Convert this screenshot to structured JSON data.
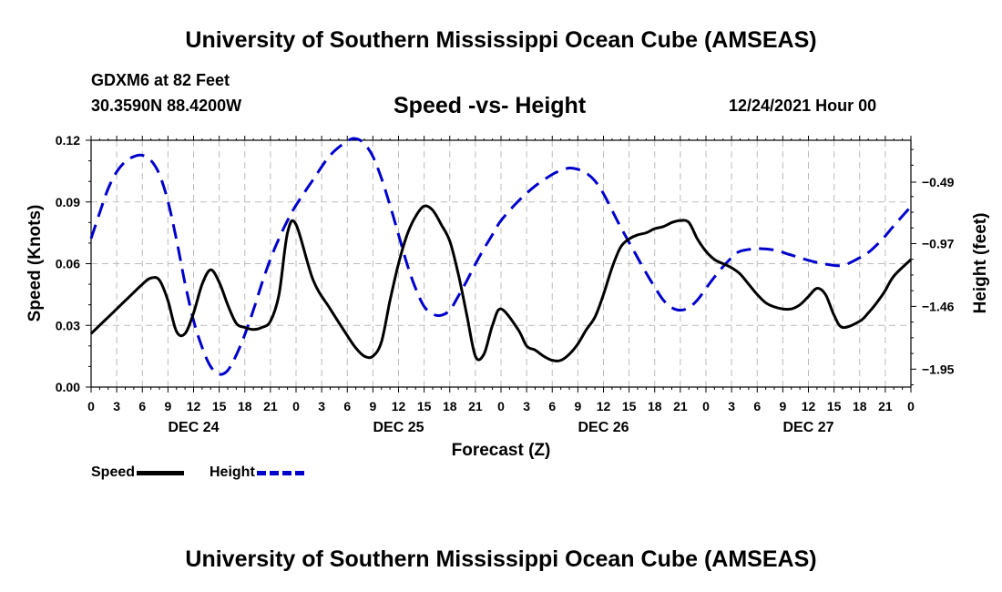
{
  "header": {
    "title": "University of Southern Mississippi Ocean Cube (AMSEAS)",
    "station": "GDXM6 at 82 Feet",
    "coords": "30.3590N  88.4200W",
    "subtitle": "Speed -vs- Height",
    "date": "12/24/2021 Hour 00"
  },
  "footer": {
    "title": "University of Southern Mississippi Ocean Cube (AMSEAS)"
  },
  "chart_data": {
    "type": "line",
    "title": "Speed -vs- Height",
    "xlabel": "Forecast (Z)",
    "ylabel": "Speed (Knots)",
    "ylabel_right": "Height (feet)",
    "xlim": [
      0,
      96
    ],
    "ylim": [
      0,
      0.12
    ],
    "ylim_right": [
      -2.09,
      -0.163
    ],
    "grid": true,
    "x_ticks": [
      0,
      3,
      6,
      9,
      12,
      15,
      18,
      21,
      24,
      27,
      30,
      33,
      36,
      39,
      42,
      45,
      48,
      51,
      54,
      57,
      60,
      63,
      66,
      69,
      72,
      75,
      78,
      81,
      84,
      87,
      90,
      93,
      96
    ],
    "x_tick_labels": [
      "0",
      "3",
      "6",
      "9",
      "12",
      "15",
      "18",
      "21",
      "0",
      "3",
      "6",
      "9",
      "12",
      "15",
      "18",
      "21",
      "0",
      "3",
      "6",
      "9",
      "12",
      "15",
      "18",
      "21",
      "0",
      "3",
      "6",
      "9",
      "12",
      "15",
      "18",
      "21",
      "0"
    ],
    "day_labels": [
      {
        "x": 12,
        "label": "DEC 24"
      },
      {
        "x": 36,
        "label": "DEC 25"
      },
      {
        "x": 60,
        "label": "DEC 26"
      },
      {
        "x": 84,
        "label": "DEC 27"
      }
    ],
    "y_ticks": [
      0,
      0.03,
      0.06,
      0.09,
      0.12
    ],
    "y_tick_labels": [
      "0.00",
      "0.03",
      "0.06",
      "0.09",
      "0.12"
    ],
    "y_right_ticks": [
      -1.95,
      -1.46,
      -0.97,
      -0.49
    ],
    "y_right_tick_labels": [
      "−1.95",
      "−1.46",
      "−0.97",
      "−0.49"
    ],
    "legend": [
      {
        "name": "Speed",
        "color": "#000000",
        "dash": "solid"
      },
      {
        "name": "Height",
        "color": "#0000cc",
        "dash": "dashed"
      }
    ],
    "series": [
      {
        "name": "Speed",
        "axis": "left",
        "color": "#000000",
        "x": [
          0,
          2,
          4,
          6,
          7,
          8,
          9,
          10,
          11,
          12,
          13,
          14,
          15,
          16,
          17,
          18,
          19,
          20,
          21,
          22,
          23,
          24,
          26,
          28,
          30,
          31,
          32,
          33,
          34,
          35,
          36,
          37,
          38,
          39,
          40,
          41,
          42,
          43,
          44,
          45,
          46,
          47,
          48,
          50,
          51,
          52,
          53,
          54,
          55,
          56,
          57,
          58,
          59,
          60,
          61,
          62,
          63,
          64,
          65,
          66,
          67,
          68,
          69,
          70,
          71,
          72,
          73,
          74,
          75,
          76,
          77,
          78,
          79,
          80,
          81,
          82,
          83,
          84,
          85,
          86,
          87,
          88,
          90,
          91,
          92,
          93,
          94,
          96
        ],
        "values": [
          0.026,
          0.034,
          0.042,
          0.05,
          0.053,
          0.052,
          0.042,
          0.027,
          0.026,
          0.036,
          0.05,
          0.057,
          0.051,
          0.04,
          0.031,
          0.029,
          0.028,
          0.029,
          0.032,
          0.045,
          0.075,
          0.079,
          0.052,
          0.038,
          0.025,
          0.019,
          0.015,
          0.015,
          0.022,
          0.042,
          0.06,
          0.074,
          0.083,
          0.088,
          0.086,
          0.079,
          0.071,
          0.055,
          0.035,
          0.015,
          0.016,
          0.03,
          0.038,
          0.028,
          0.02,
          0.018,
          0.015,
          0.013,
          0.013,
          0.016,
          0.021,
          0.028,
          0.034,
          0.045,
          0.058,
          0.068,
          0.072,
          0.074,
          0.075,
          0.077,
          0.078,
          0.08,
          0.081,
          0.08,
          0.072,
          0.066,
          0.062,
          0.06,
          0.058,
          0.055,
          0.05,
          0.045,
          0.041,
          0.039,
          0.038,
          0.038,
          0.04,
          0.044,
          0.048,
          0.045,
          0.035,
          0.029,
          0.032,
          0.036,
          0.041,
          0.047,
          0.054,
          0.062
        ]
      },
      {
        "name": "Height",
        "axis": "right",
        "color": "#0000cc",
        "x": [
          0,
          1,
          2,
          3,
          4,
          5,
          6,
          7,
          8,
          9,
          10,
          11,
          12,
          13,
          14,
          15,
          16,
          17,
          18,
          19,
          20,
          21,
          22,
          23,
          24,
          26,
          28,
          30,
          31,
          32,
          33,
          34,
          35,
          36,
          37,
          38,
          39,
          40,
          41,
          42,
          43,
          44,
          45,
          46,
          47,
          48,
          50,
          52,
          54,
          55,
          56,
          57,
          58,
          59,
          60,
          61,
          62,
          63,
          64,
          65,
          66,
          67,
          68,
          69,
          70,
          71,
          72,
          73,
          74,
          75,
          76,
          78,
          80,
          82,
          84,
          86,
          88,
          90,
          91,
          92,
          93,
          94,
          96
        ],
        "values": [
          -0.93,
          -0.73,
          -0.54,
          -0.41,
          -0.33,
          -0.29,
          -0.28,
          -0.32,
          -0.43,
          -0.64,
          -0.94,
          -1.28,
          -1.57,
          -1.78,
          -1.93,
          -1.99,
          -1.96,
          -1.84,
          -1.68,
          -1.49,
          -1.28,
          -1.09,
          -0.93,
          -0.79,
          -0.67,
          -0.47,
          -0.28,
          -0.17,
          -0.15,
          -0.19,
          -0.29,
          -0.46,
          -0.67,
          -0.9,
          -1.13,
          -1.32,
          -1.46,
          -1.52,
          -1.53,
          -1.49,
          -1.38,
          -1.26,
          -1.13,
          -1.01,
          -0.9,
          -0.79,
          -0.64,
          -0.52,
          -0.43,
          -0.4,
          -0.38,
          -0.39,
          -0.42,
          -0.48,
          -0.58,
          -0.71,
          -0.84,
          -0.96,
          -1.08,
          -1.2,
          -1.31,
          -1.41,
          -1.47,
          -1.49,
          -1.47,
          -1.41,
          -1.32,
          -1.23,
          -1.15,
          -1.08,
          -1.03,
          -1.01,
          -1.02,
          -1.06,
          -1.1,
          -1.13,
          -1.14,
          -1.08,
          -1.04,
          -0.98,
          -0.91,
          -0.83,
          -0.68
        ]
      }
    ]
  }
}
